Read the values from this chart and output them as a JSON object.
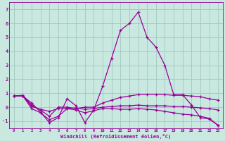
{
  "xlabel": "Windchill (Refroidissement éolien,°C)",
  "xlim": [
    -0.5,
    23.5
  ],
  "ylim": [
    -1.5,
    7.5
  ],
  "yticks": [
    -1,
    0,
    1,
    2,
    3,
    4,
    5,
    6,
    7
  ],
  "xticks": [
    0,
    1,
    2,
    3,
    4,
    5,
    6,
    7,
    8,
    9,
    10,
    11,
    12,
    13,
    14,
    15,
    16,
    17,
    18,
    19,
    20,
    21,
    22,
    23
  ],
  "bg_color": "#c8e8e0",
  "grid_color": "#a0c8c0",
  "line_color": "#990099",
  "lines": [
    [
      0.8,
      0.8,
      0.3,
      -0.35,
      -1.1,
      -0.75,
      0.6,
      0.1,
      -1.1,
      -0.2,
      1.5,
      3.5,
      5.5,
      6.0,
      6.8,
      5.0,
      4.3,
      3.0,
      0.9,
      0.9,
      0.15,
      -0.75,
      -0.85,
      -1.3
    ],
    [
      0.8,
      0.85,
      0.15,
      -0.2,
      -0.65,
      0.0,
      0.0,
      -0.1,
      0.0,
      0.0,
      0.3,
      0.5,
      0.7,
      0.8,
      0.9,
      0.9,
      0.9,
      0.9,
      0.85,
      0.85,
      0.8,
      0.75,
      0.6,
      0.5
    ],
    [
      0.8,
      0.82,
      0.05,
      -0.15,
      -0.3,
      -0.1,
      -0.1,
      -0.05,
      -0.15,
      -0.1,
      0.0,
      0.05,
      0.1,
      0.1,
      0.15,
      0.1,
      0.1,
      0.1,
      0.05,
      0.05,
      0.0,
      -0.05,
      -0.1,
      -0.2
    ],
    [
      0.8,
      0.82,
      -0.1,
      -0.4,
      -0.9,
      -0.65,
      -0.1,
      -0.2,
      -0.4,
      -0.25,
      -0.1,
      -0.1,
      -0.15,
      -0.15,
      -0.1,
      -0.15,
      -0.2,
      -0.3,
      -0.4,
      -0.5,
      -0.55,
      -0.65,
      -0.8,
      -1.3
    ]
  ]
}
